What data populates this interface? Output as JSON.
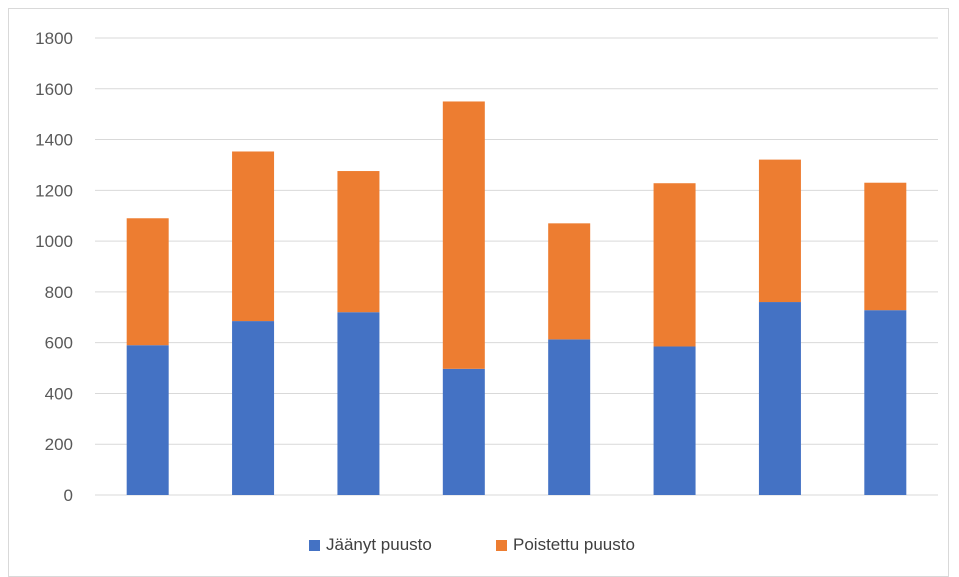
{
  "chart_data": {
    "type": "bar",
    "stacked": true,
    "categories": [
      "",
      "",
      "",
      "",
      "",
      "",
      "",
      ""
    ],
    "series": [
      {
        "name": "Jäänyt puusto",
        "color": "#4472C4",
        "values": [
          590,
          685,
          720,
          497,
          613,
          585,
          760,
          728
        ]
      },
      {
        "name": "Poistettu puusto",
        "color": "#ED7D31",
        "values": [
          500,
          668,
          556,
          1053,
          457,
          643,
          561,
          502
        ]
      }
    ],
    "ylim": [
      0,
      1800
    ],
    "yticks": [
      0,
      200,
      400,
      600,
      800,
      1000,
      1200,
      1400,
      1600,
      1800
    ],
    "grid": true,
    "legend_position": "bottom",
    "title": "",
    "xlabel": "",
    "ylabel": ""
  }
}
